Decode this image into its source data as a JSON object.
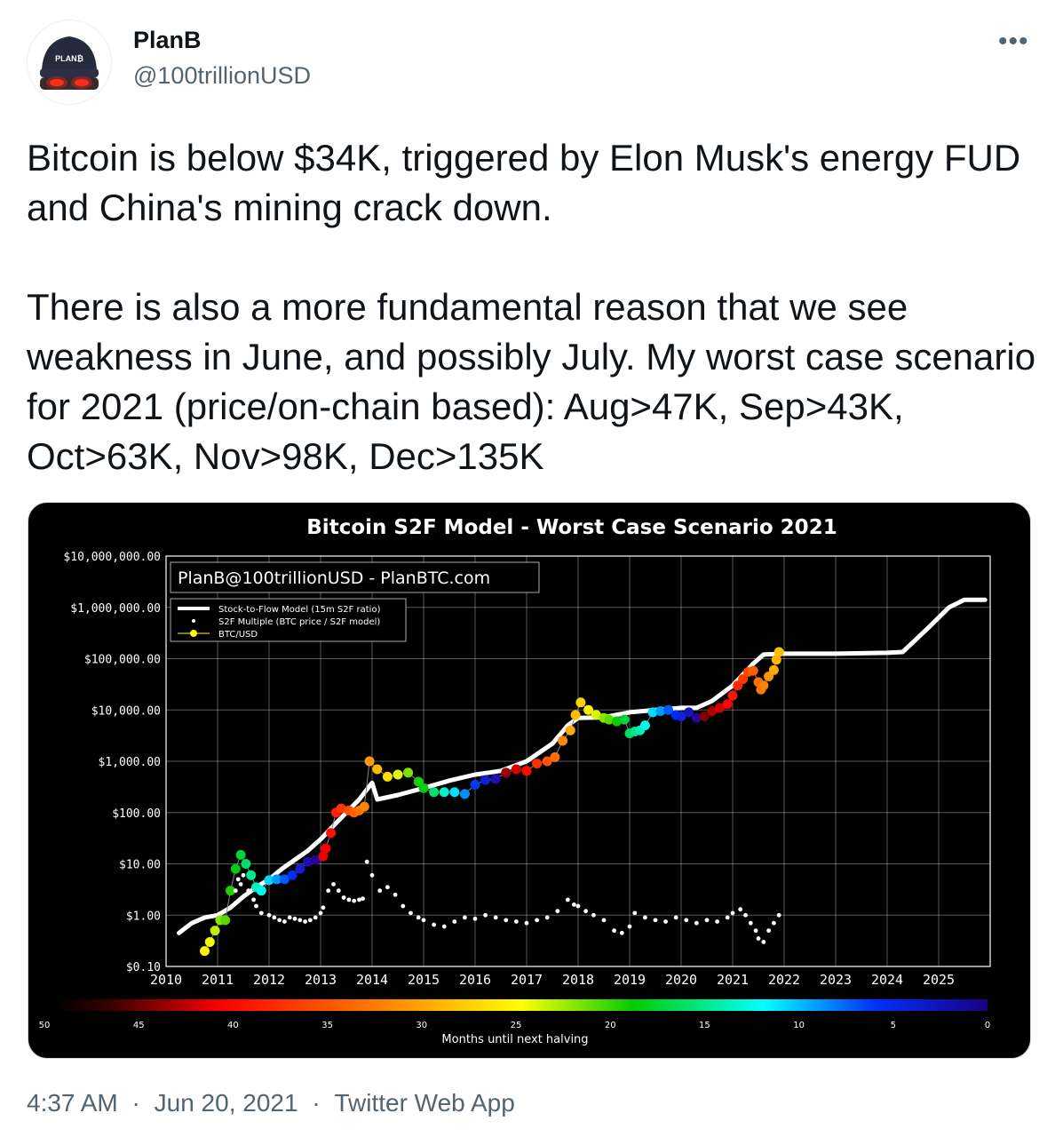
{
  "author": {
    "name": "PlanB",
    "handle": "@100trillionUSD",
    "avatar_text": "PLAN₿"
  },
  "more_icon": "more-horizontal-icon",
  "tweet_text": "Bitcoin is below $34K, triggered by Elon Musk's energy FUD and China's mining crack down.\n\nThere is also a more fundamental reason that we see weakness in June, and possibly July. My worst case scenario for 2021 (price/on-chain based): Aug>47K, Sep>43K, Oct>63K, Nov>98K, Dec>135K",
  "meta": {
    "time": "4:37 AM",
    "date": "Jun 20, 2021",
    "source": "Twitter Web App",
    "separator": "·"
  },
  "chart_data": {
    "type": "scatter",
    "title": "Bitcoin S2F Model - Worst Case Scenario 2021",
    "watermark": "PlanB@100trillionUSD - PlanBTC.com",
    "y_scale": "log",
    "ylim": [
      0.1,
      10000000
    ],
    "y_ticks": [
      "$0.10",
      "$1.00",
      "$10.00",
      "$100.00",
      "$1,000.00",
      "$10,000.00",
      "$100,000.00",
      "$1,000,000.00",
      "$10,000,000.00"
    ],
    "xlim": [
      2010,
      2026
    ],
    "x_ticks": [
      "2010",
      "2011",
      "2012",
      "2013",
      "2014",
      "2015",
      "2016",
      "2017",
      "2018",
      "2019",
      "2020",
      "2021",
      "2022",
      "2023",
      "2024",
      "2025"
    ],
    "grid": true,
    "legend": {
      "placement": "top-left",
      "entries": [
        "Stock-to-Flow Model (15m S2F ratio)",
        "S2F Multiple (BTC price / S2F model)",
        "BTC/USD"
      ]
    },
    "colorbar": {
      "label": "Months until next halving",
      "ticks": [
        "50",
        "45",
        "40",
        "35",
        "30",
        "25",
        "20",
        "15",
        "10",
        "5",
        "0"
      ]
    },
    "series": [
      {
        "name": "Stock-to-Flow Model (15m S2F ratio)",
        "x": [
          2010.25,
          2010.5,
          2010.75,
          2011.0,
          2011.25,
          2011.5,
          2011.75,
          2012.0,
          2012.25,
          2012.5,
          2012.75,
          2013.0,
          2013.25,
          2013.5,
          2013.75,
          2014.0,
          2014.1,
          2014.5,
          2015.0,
          2015.5,
          2016.0,
          2016.5,
          2017.0,
          2017.5,
          2017.8,
          2018.0,
          2018.5,
          2019.0,
          2019.5,
          2020.0,
          2020.3,
          2020.6,
          2021.0,
          2021.4,
          2021.6,
          2022.0,
          2023.0,
          2024.0,
          2024.3,
          2024.8,
          2025.2,
          2025.5,
          2025.9
        ],
        "y": [
          0.45,
          0.7,
          0.9,
          1.0,
          1.4,
          2.3,
          3.5,
          5,
          8,
          12,
          18,
          30,
          55,
          100,
          180,
          380,
          180,
          220,
          300,
          420,
          550,
          650,
          1000,
          2200,
          5000,
          7000,
          7200,
          9000,
          10000,
          11000,
          11000,
          15000,
          30000,
          80000,
          120000,
          125000,
          125000,
          130000,
          135000,
          400000,
          1000000,
          1400000,
          1400000
        ]
      },
      {
        "name": "S2F Multiple (BTC price / S2F model)",
        "x": [
          2011.35,
          2011.4,
          2011.45,
          2011.5,
          2011.6,
          2011.7,
          2011.75,
          2011.85,
          2012.0,
          2012.1,
          2012.2,
          2012.3,
          2012.4,
          2012.5,
          2012.6,
          2012.7,
          2012.8,
          2012.9,
          2013.0,
          2013.05,
          2013.15,
          2013.25,
          2013.35,
          2013.45,
          2013.55,
          2013.65,
          2013.75,
          2013.82,
          2013.9,
          2014.0,
          2014.15,
          2014.3,
          2014.45,
          2014.6,
          2014.75,
          2014.9,
          2015.0,
          2015.2,
          2015.4,
          2015.6,
          2015.8,
          2016.0,
          2016.2,
          2016.4,
          2016.6,
          2016.8,
          2017.0,
          2017.2,
          2017.4,
          2017.6,
          2017.8,
          2017.92,
          2018.0,
          2018.15,
          2018.3,
          2018.5,
          2018.7,
          2018.85,
          2019.0,
          2019.1,
          2019.3,
          2019.5,
          2019.7,
          2019.9,
          2020.1,
          2020.3,
          2020.5,
          2020.7,
          2020.9,
          2021.0,
          2021.15,
          2021.25,
          2021.35,
          2021.45,
          2021.5,
          2021.6,
          2021.7,
          2021.8,
          2021.9
        ],
        "y": [
          3,
          5,
          4,
          6,
          3,
          2,
          1.5,
          1.1,
          1.0,
          0.9,
          0.8,
          0.75,
          0.9,
          0.85,
          0.8,
          0.75,
          0.8,
          0.9,
          1.1,
          1.4,
          3,
          4,
          3,
          2.2,
          2.0,
          1.9,
          2.0,
          2.1,
          11,
          6,
          3,
          3.5,
          2.5,
          1.5,
          1.1,
          0.9,
          0.8,
          0.65,
          0.6,
          0.75,
          0.9,
          0.85,
          1.0,
          0.9,
          0.8,
          0.75,
          0.7,
          0.8,
          0.9,
          1.2,
          2.0,
          1.6,
          1.5,
          1.2,
          1.0,
          0.8,
          0.5,
          0.45,
          0.6,
          1.1,
          0.9,
          0.8,
          0.75,
          0.9,
          0.8,
          0.7,
          0.8,
          0.75,
          0.9,
          1.1,
          1.3,
          1.0,
          0.7,
          0.5,
          0.35,
          0.3,
          0.5,
          0.7,
          1.0
        ]
      },
      {
        "name": "BTC/USD",
        "x": [
          2010.75,
          2010.85,
          2010.95,
          2011.05,
          2011.15,
          2011.25,
          2011.35,
          2011.45,
          2011.55,
          2011.65,
          2011.75,
          2011.85,
          2012.0,
          2012.15,
          2012.3,
          2012.45,
          2012.6,
          2012.75,
          2012.9,
          2013.05,
          2013.1,
          2013.2,
          2013.3,
          2013.4,
          2013.55,
          2013.65,
          2013.75,
          2013.85,
          2013.95,
          2014.1,
          2014.3,
          2014.5,
          2014.7,
          2014.9,
          2015.0,
          2015.2,
          2015.4,
          2015.6,
          2015.8,
          2016.0,
          2016.2,
          2016.4,
          2016.6,
          2016.8,
          2017.0,
          2017.2,
          2017.4,
          2017.55,
          2017.7,
          2017.85,
          2017.95,
          2018.05,
          2018.2,
          2018.35,
          2018.5,
          2018.6,
          2018.75,
          2018.9,
          2019.0,
          2019.1,
          2019.2,
          2019.3,
          2019.45,
          2019.6,
          2019.75,
          2019.9,
          2020.0,
          2020.15,
          2020.3,
          2020.45,
          2020.6,
          2020.75,
          2020.9,
          2021.0,
          2021.1,
          2021.2,
          2021.3,
          2021.4,
          2021.5,
          2021.55,
          2021.6,
          2021.7,
          2021.8,
          2021.85,
          2021.9
        ],
        "y": [
          0.2,
          0.3,
          0.5,
          0.8,
          0.8,
          3,
          8,
          15,
          10,
          6,
          3.5,
          3.0,
          4.8,
          5,
          5,
          6,
          8,
          11,
          12,
          14,
          20,
          40,
          100,
          120,
          110,
          100,
          110,
          130,
          1000,
          700,
          500,
          550,
          600,
          400,
          300,
          250,
          250,
          250,
          230,
          350,
          430,
          450,
          600,
          700,
          650,
          900,
          1000,
          1200,
          2500,
          4000,
          8000,
          14000,
          10000,
          8000,
          7000,
          6500,
          6000,
          6500,
          3500,
          3800,
          4000,
          5000,
          9000,
          9500,
          10000,
          8000,
          7500,
          9000,
          7000,
          7500,
          9500,
          11000,
          13000,
          19000,
          30000,
          40000,
          55000,
          58000,
          35000,
          25000,
          30000,
          45000,
          60000,
          95000,
          135000
        ]
      }
    ]
  }
}
